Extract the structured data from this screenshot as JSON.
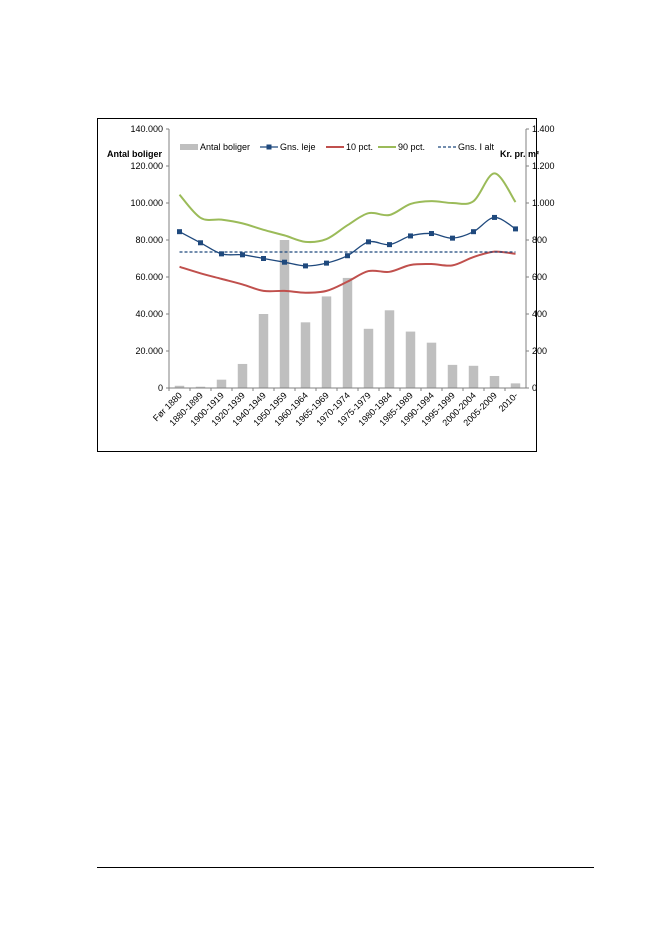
{
  "chart_data": {
    "type": "bar",
    "categories": [
      "Før 1880",
      "1880-1899",
      "1900-1919",
      "1920-1939",
      "1940-1949",
      "1950-1959",
      "1960-1964",
      "1965-1969",
      "1970-1974",
      "1975-1979",
      "1980-1984",
      "1985-1989",
      "1990-1994",
      "1995-1999",
      "2000-2004",
      "2005-2009",
      "2010-"
    ],
    "left_axis": {
      "label": "Antal boliger",
      "range": [
        0,
        140000
      ],
      "ticks": [
        0,
        20000,
        40000,
        60000,
        80000,
        100000,
        120000,
        140000
      ],
      "tick_labels": [
        "0",
        "20.000",
        "40.000",
        "60.000",
        "80.000",
        "100.000",
        "120.000",
        "140.000"
      ]
    },
    "right_axis": {
      "label": "Kr. pr. m²",
      "range": [
        0,
        1400
      ],
      "ticks": [
        0,
        200,
        400,
        600,
        800,
        1000,
        1200,
        1400
      ],
      "tick_labels": [
        "0",
        "200",
        "400",
        "600",
        "800",
        "1.000",
        "1.200",
        "1.400"
      ]
    },
    "grid": false,
    "legend_position": "top",
    "series": [
      {
        "name": "Antal boliger",
        "kind": "bar",
        "axis": "left",
        "color": "#bfbfbf",
        "values": [
          1200,
          700,
          4500,
          13000,
          40000,
          80000,
          35500,
          49500,
          59500,
          32000,
          42000,
          30500,
          24500,
          12500,
          12000,
          6500,
          2500
        ]
      },
      {
        "name": "Gns. leje",
        "kind": "line-markers",
        "axis": "right",
        "color": "#1f497d",
        "values": [
          845,
          785,
          725,
          720,
          700,
          680,
          660,
          675,
          715,
          790,
          775,
          822,
          835,
          810,
          845,
          922,
          860
        ]
      },
      {
        "name": "10 pct.",
        "kind": "line",
        "axis": "right",
        "color": "#c0504d",
        "values": [
          655,
          620,
          590,
          560,
          525,
          525,
          515,
          525,
          575,
          632,
          628,
          665,
          670,
          663,
          708,
          737,
          725
        ]
      },
      {
        "name": "90 pct.",
        "kind": "line",
        "axis": "right",
        "color": "#9bbb59",
        "values": [
          1045,
          920,
          910,
          890,
          855,
          825,
          790,
          805,
          880,
          945,
          935,
          995,
          1010,
          1000,
          1010,
          1160,
          1005
        ]
      },
      {
        "name": "Gns. I alt",
        "kind": "dashed-line",
        "axis": "right",
        "color": "#1f497d",
        "values": [
          735,
          735,
          735,
          735,
          735,
          735,
          735,
          735,
          735,
          735,
          735,
          735,
          735,
          735,
          735,
          735,
          735
        ]
      }
    ]
  }
}
